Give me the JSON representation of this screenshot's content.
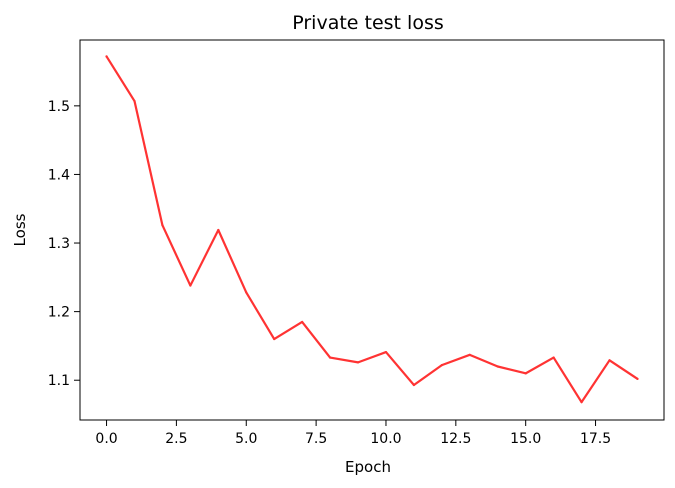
{
  "chart_data": {
    "type": "line",
    "title": "Private test loss",
    "xlabel": "Epoch",
    "ylabel": "Loss",
    "xlim": [
      -0.95,
      19.95
    ],
    "ylim": [
      1.042,
      1.596
    ],
    "xticks": [
      0.0,
      2.5,
      5.0,
      7.5,
      10.0,
      12.5,
      15.0,
      17.5
    ],
    "xtick_labels": [
      "0.0",
      "2.5",
      "5.0",
      "7.5",
      "10.0",
      "12.5",
      "15.0",
      "17.5"
    ],
    "yticks": [
      1.1,
      1.2,
      1.3,
      1.4,
      1.5
    ],
    "ytick_labels": [
      "1.1",
      "1.2",
      "1.3",
      "1.4",
      "1.5"
    ],
    "grid": false,
    "legend": "none",
    "series": [
      {
        "color": "#ff3333",
        "x": [
          0,
          1,
          2,
          3,
          4,
          5,
          6,
          7,
          8,
          9,
          10,
          11,
          12,
          13,
          14,
          15,
          16,
          17,
          18,
          19
        ],
        "y": [
          1.572,
          1.507,
          1.326,
          1.238,
          1.319,
          1.228,
          1.16,
          1.185,
          1.133,
          1.126,
          1.141,
          1.093,
          1.122,
          1.137,
          1.12,
          1.11,
          1.133,
          1.068,
          1.129,
          1.102
        ]
      }
    ]
  }
}
